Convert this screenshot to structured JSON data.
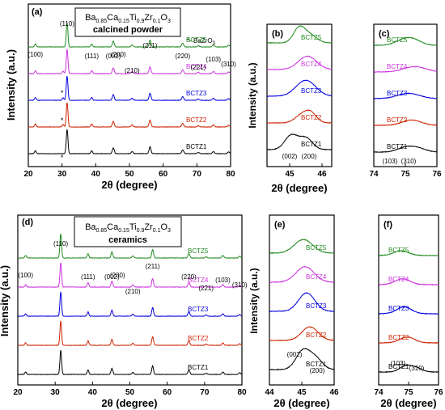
{
  "colors": {
    "BCTZ1": "#000000",
    "BCTZ2": "#cc2200",
    "BCTZ3": "#0000dd",
    "BCTZ4": "#cc33dd",
    "BCTZ5": "#228b22"
  },
  "chart_data": [
    {
      "panel": "a",
      "type": "line",
      "label": "(a)",
      "title_formula": {
        "base1": "Ba",
        "sub1": "0.85",
        "base2": "Ca",
        "sub2": "0.15",
        "base3": "Ti",
        "sub3": "0.9",
        "base4": "Zr",
        "sub4": "0.1",
        "base5": "O",
        "sub5": "3"
      },
      "title_line2": "calcined powder",
      "note_prefix": "*- BaZrO",
      "note_sub": "3",
      "xlabel": "2θ (degree)",
      "ylabel": "Intensity (a.u.)",
      "xlim": [
        20,
        80
      ],
      "xticks": [
        "20",
        "30",
        "40",
        "50",
        "60",
        "70",
        "80"
      ],
      "series": [
        {
          "name": "BCTZ1",
          "offset": 0
        },
        {
          "name": "BCTZ2",
          "offset": 1
        },
        {
          "name": "BCTZ3",
          "offset": 2
        },
        {
          "name": "BCTZ4",
          "offset": 3
        },
        {
          "name": "BCTZ5",
          "offset": 4
        }
      ],
      "peaks": [
        {
          "x": 22.1,
          "h": 0.35,
          "w": 0.25
        },
        {
          "x": 31.5,
          "h": 3.0,
          "w": 0.25
        },
        {
          "x": 38.8,
          "h": 0.35,
          "w": 0.25
        },
        {
          "x": 45.2,
          "h": 0.7,
          "w": 0.28
        },
        {
          "x": 50.8,
          "h": 0.25,
          "w": 0.28
        },
        {
          "x": 56.1,
          "h": 0.85,
          "w": 0.28
        },
        {
          "x": 65.8,
          "h": 0.45,
          "w": 0.3
        },
        {
          "x": 70.4,
          "h": 0.15,
          "w": 0.3
        },
        {
          "x": 74.9,
          "h": 0.25,
          "w": 0.3
        },
        {
          "x": 79.4,
          "h": 0.2,
          "w": 0.3
        }
      ],
      "impurity_peak": {
        "x": 30.3,
        "h": 0.3
      },
      "hkl": [
        {
          "text": "(100)",
          "x": 22.1
        },
        {
          "text": "(110)",
          "x": 31.5
        },
        {
          "text": "(111)",
          "x": 38.8
        },
        {
          "text": "(002)",
          "x": 45.2
        },
        {
          "text": "(200)",
          "x": 46.7
        },
        {
          "text": "(210)",
          "x": 50.8
        },
        {
          "text": "(211)",
          "x": 56.1
        },
        {
          "text": "(220)",
          "x": 65.8
        },
        {
          "text": "(221)",
          "x": 70.4
        },
        {
          "text": "(103)",
          "x": 74.9
        },
        {
          "text": "(310)",
          "x": 79.4
        }
      ],
      "star": "*"
    },
    {
      "panel": "b",
      "type": "line",
      "label": "(b)",
      "xlabel": "2θ (degree)",
      "ylabel": "Intensity (a.u.)",
      "xlim": [
        44.3,
        46.3
      ],
      "xticks": [
        "45",
        "46"
      ],
      "xtick_values": [
        45,
        46
      ],
      "series": [
        {
          "name": "BCTZ1",
          "offset": 0,
          "peaks": [
            {
              "x": 45.05,
              "h": 0.8,
              "w": 0.2
            },
            {
              "x": 45.5,
              "h": 0.65,
              "w": 0.2
            }
          ]
        },
        {
          "name": "BCTZ2",
          "offset": 1,
          "peaks": [
            {
              "x": 45.35,
              "h": 0.4,
              "w": 0.2
            },
            {
              "x": 45.65,
              "h": 0.55,
              "w": 0.18
            }
          ]
        },
        {
          "name": "BCTZ3",
          "offset": 2,
          "peaks": [
            {
              "x": 45.5,
              "h": 0.9,
              "w": 0.3
            }
          ]
        },
        {
          "name": "BCTZ4",
          "offset": 3,
          "peaks": [
            {
              "x": 45.55,
              "h": 0.75,
              "w": 0.28
            }
          ]
        },
        {
          "name": "BCTZ5",
          "offset": 4,
          "peaks": [
            {
              "x": 45.3,
              "h": 0.85,
              "w": 0.18
            },
            {
              "x": 45.65,
              "h": 0.4,
              "w": 0.2
            }
          ]
        }
      ],
      "hkl": [
        {
          "text": "(002)"
        },
        {
          "text": "(200)"
        }
      ]
    },
    {
      "panel": "c",
      "type": "line",
      "label": "(c)",
      "xlabel": "",
      "ylabel": "",
      "xlim": [
        74,
        76
      ],
      "xticks": [
        "74",
        "75",
        "76"
      ],
      "xtick_values": [
        74,
        75,
        76
      ],
      "series": [
        {
          "name": "BCTZ1",
          "offset": 0,
          "peaks": [
            {
              "x": 75.0,
              "h": 0.25,
              "w": 0.25
            },
            {
              "x": 75.4,
              "h": 0.2,
              "w": 0.25
            }
          ]
        },
        {
          "name": "BCTZ2",
          "offset": 1,
          "peaks": [
            {
              "x": 75.2,
              "h": 0.3,
              "w": 0.3
            }
          ]
        },
        {
          "name": "BCTZ3",
          "offset": 2,
          "peaks": [
            {
              "x": 75.1,
              "h": 0.3,
              "w": 0.35
            }
          ]
        },
        {
          "name": "BCTZ4",
          "offset": 3,
          "peaks": [
            {
              "x": 75.3,
              "h": 0.3,
              "w": 0.35
            }
          ]
        },
        {
          "name": "BCTZ5",
          "offset": 4,
          "peaks": [
            {
              "x": 74.9,
              "h": 0.25,
              "w": 0.25
            },
            {
              "x": 75.25,
              "h": 0.3,
              "w": 0.25
            }
          ]
        }
      ],
      "hkl": [
        {
          "text": "(103)"
        },
        {
          "text": "(310)"
        }
      ]
    },
    {
      "panel": "d",
      "type": "line",
      "label": "(d)",
      "title_formula": {
        "base1": "Ba",
        "sub1": "0.85",
        "base2": "Ca",
        "sub2": "0.15",
        "base3": "Ti",
        "sub3": "0.9",
        "base4": "Zr",
        "sub4": "0.1",
        "base5": "O",
        "sub5": "3"
      },
      "title_line2": "ceramics",
      "xlabel": "2θ (degree)",
      "ylabel": "Intensity (a.u.)",
      "xlim": [
        20,
        80
      ],
      "xticks": [
        "20",
        "30",
        "40",
        "50",
        "60",
        "70",
        "80"
      ],
      "series": [
        {
          "name": "BCTZ1",
          "offset": 0
        },
        {
          "name": "BCTZ2",
          "offset": 1
        },
        {
          "name": "BCTZ3",
          "offset": 2
        },
        {
          "name": "BCTZ4",
          "offset": 3
        },
        {
          "name": "BCTZ5",
          "offset": 4
        }
      ],
      "peaks": [
        {
          "x": 22.1,
          "h": 0.3,
          "w": 0.22
        },
        {
          "x": 31.5,
          "h": 3.0,
          "w": 0.22
        },
        {
          "x": 38.8,
          "h": 0.55,
          "w": 0.22
        },
        {
          "x": 45.2,
          "h": 0.75,
          "w": 0.24
        },
        {
          "x": 50.8,
          "h": 0.25,
          "w": 0.24
        },
        {
          "x": 56.1,
          "h": 1.05,
          "w": 0.24
        },
        {
          "x": 65.8,
          "h": 0.55,
          "w": 0.26
        },
        {
          "x": 70.4,
          "h": 0.15,
          "w": 0.26
        },
        {
          "x": 74.9,
          "h": 0.3,
          "w": 0.26
        },
        {
          "x": 79.4,
          "h": 0.2,
          "w": 0.26
        }
      ],
      "hkl": [
        {
          "text": "(100)",
          "x": 22.1
        },
        {
          "text": "(110)",
          "x": 31.5
        },
        {
          "text": "(111)",
          "x": 38.8
        },
        {
          "text": "(002)",
          "x": 45.2
        },
        {
          "text": "(200)",
          "x": 46.7
        },
        {
          "text": "(210)",
          "x": 50.8
        },
        {
          "text": "(211)",
          "x": 56.1
        },
        {
          "text": "(220)",
          "x": 65.8
        },
        {
          "text": "(221)",
          "x": 70.4
        },
        {
          "text": "(103)",
          "x": 74.9
        },
        {
          "text": "(310)",
          "x": 79.4
        }
      ]
    },
    {
      "panel": "e",
      "type": "line",
      "label": "(e)",
      "xlabel": "2θ (degree)",
      "ylabel": "Intensity (a.u.)",
      "xlim": [
        44,
        46
      ],
      "xticks": [
        "44",
        "45",
        "46"
      ],
      "xtick_values": [
        44,
        45,
        46
      ],
      "series": [
        {
          "name": "BCTZ1",
          "offset": 0,
          "peaks": [
            {
              "x": 45.05,
              "h": 1.0,
              "w": 0.22
            },
            {
              "x": 45.45,
              "h": 0.5,
              "w": 0.2
            }
          ]
        },
        {
          "name": "BCTZ2",
          "offset": 1,
          "peaks": [
            {
              "x": 45.25,
              "h": 0.7,
              "w": 0.25
            }
          ]
        },
        {
          "name": "BCTZ3",
          "offset": 2,
          "peaks": [
            {
              "x": 45.15,
              "h": 0.95,
              "w": 0.25
            }
          ]
        },
        {
          "name": "BCTZ4",
          "offset": 3,
          "peaks": [
            {
              "x": 45.1,
              "h": 0.8,
              "w": 0.28
            }
          ]
        },
        {
          "name": "BCTZ5",
          "offset": 4,
          "peaks": [
            {
              "x": 45.05,
              "h": 0.7,
              "w": 0.28
            }
          ]
        }
      ],
      "hkl": [
        {
          "text": "(002)"
        },
        {
          "text": "(200)"
        }
      ]
    },
    {
      "panel": "f",
      "type": "line",
      "label": "(f)",
      "xlabel": "2θ (degree)",
      "ylabel": "",
      "xlim": [
        74,
        76
      ],
      "xticks": [
        "74",
        "75",
        "76"
      ],
      "xtick_values": [
        74,
        75,
        76
      ],
      "series": [
        {
          "name": "BCTZ1",
          "offset": 0,
          "peaks": [
            {
              "x": 74.9,
              "h": 0.3,
              "w": 0.2
            },
            {
              "x": 75.25,
              "h": 0.2,
              "w": 0.2
            }
          ]
        },
        {
          "name": "BCTZ2",
          "offset": 1,
          "peaks": [
            {
              "x": 74.95,
              "h": 0.3,
              "w": 0.25
            }
          ]
        },
        {
          "name": "BCTZ3",
          "offset": 2,
          "peaks": [
            {
              "x": 74.85,
              "h": 0.35,
              "w": 0.25
            }
          ]
        },
        {
          "name": "BCTZ4",
          "offset": 3,
          "peaks": [
            {
              "x": 74.8,
              "h": 0.3,
              "w": 0.25
            }
          ]
        },
        {
          "name": "BCTZ5",
          "offset": 4,
          "peaks": [
            {
              "x": 74.75,
              "h": 0.25,
              "w": 0.25
            }
          ]
        }
      ],
      "hkl": [
        {
          "text": "(103)"
        },
        {
          "text": "(310)"
        }
      ]
    }
  ]
}
